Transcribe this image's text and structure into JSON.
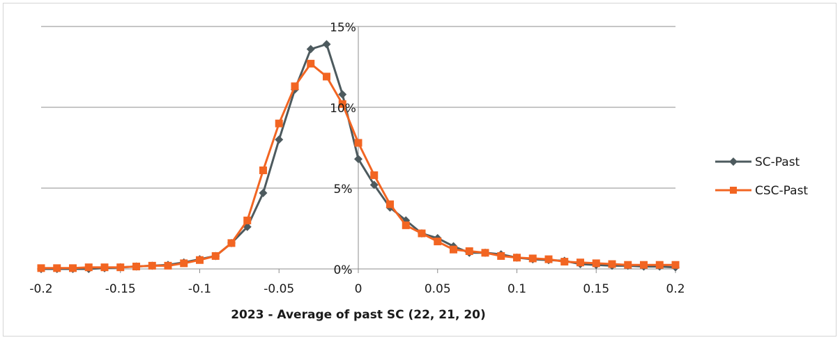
{
  "chart_data": {
    "type": "line",
    "title": "",
    "xlabel": "2023 - Average of past SC (22, 21, 20)",
    "ylabel": "",
    "xlim": [
      -0.2,
      0.2
    ],
    "ylim": [
      0,
      15
    ],
    "x_ticks": [
      "-0.2",
      "-0.15",
      "-0.1",
      "-0.05",
      "0",
      "0.05",
      "0.1",
      "0.15",
      "0.2"
    ],
    "x_tick_values": [
      -0.2,
      -0.15,
      -0.1,
      -0.05,
      0,
      0.05,
      0.1,
      0.15,
      0.2
    ],
    "y_ticks": [
      "0%",
      "5%",
      "10%",
      "15%"
    ],
    "y_tick_values": [
      0,
      5,
      10,
      15
    ],
    "grid": "horizontal",
    "legend_position": "right",
    "x": [
      -0.2,
      -0.19,
      -0.18,
      -0.17,
      -0.16,
      -0.15,
      -0.14,
      -0.13,
      -0.12,
      -0.11,
      -0.1,
      -0.09,
      -0.08,
      -0.07,
      -0.06,
      -0.05,
      -0.04,
      -0.03,
      -0.02,
      -0.01,
      0,
      0.01,
      0.02,
      0.03,
      0.04,
      0.05,
      0.06,
      0.07,
      0.08,
      0.09,
      0.1,
      0.11,
      0.12,
      0.13,
      0.14,
      0.15,
      0.16,
      0.17,
      0.18,
      0.19,
      0.2
    ],
    "series": [
      {
        "name": "SC-Past",
        "color": "#4d5a5e",
        "marker": "diamond",
        "values": [
          0.0,
          0.0,
          0.0,
          0.0,
          0.05,
          0.1,
          0.15,
          0.2,
          0.25,
          0.4,
          0.6,
          0.8,
          1.6,
          2.6,
          4.7,
          8.0,
          11.1,
          13.6,
          13.9,
          10.8,
          6.8,
          5.2,
          3.8,
          3.0,
          2.2,
          1.9,
          1.4,
          1.0,
          1.0,
          0.9,
          0.7,
          0.6,
          0.55,
          0.5,
          0.3,
          0.25,
          0.2,
          0.2,
          0.15,
          0.15,
          0.1
        ]
      },
      {
        "name": "CSC-Past",
        "color": "#f26522",
        "marker": "square",
        "values": [
          0.05,
          0.05,
          0.05,
          0.1,
          0.1,
          0.1,
          0.15,
          0.2,
          0.2,
          0.35,
          0.55,
          0.8,
          1.6,
          3.0,
          6.1,
          9.0,
          11.3,
          12.7,
          11.9,
          10.2,
          7.8,
          5.8,
          4.0,
          2.7,
          2.2,
          1.7,
          1.2,
          1.1,
          1.0,
          0.8,
          0.7,
          0.65,
          0.6,
          0.45,
          0.4,
          0.35,
          0.3,
          0.25,
          0.25,
          0.25,
          0.25
        ]
      }
    ]
  }
}
